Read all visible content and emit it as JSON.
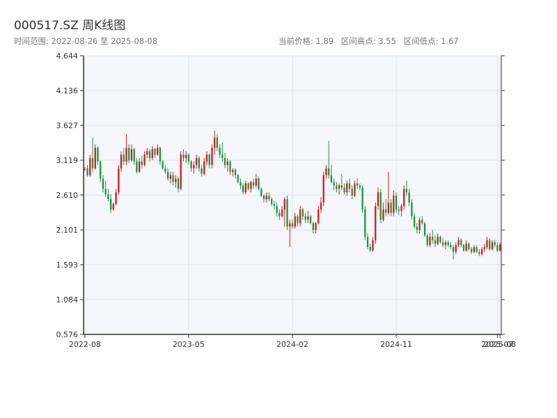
{
  "header": {
    "title": "000517.SZ 周K线图",
    "range_text": "时间范围: 2022-08-26 至 2025-08-08",
    "current_price": "当前价格: 1.89",
    "range_high": "区间高点: 3.55",
    "range_low": "区间低点: 1.67"
  },
  "colors": {
    "up": "#d7191c",
    "down": "#1a9641",
    "grid": "#e3e6ea",
    "plot_bg": "#f5f7fa",
    "axis": "#333333"
  },
  "chart_data": {
    "type": "candlestick",
    "title": "000517.SZ 周K线图",
    "xlabel": "",
    "ylabel": "",
    "ylim": [
      0.576,
      4.644
    ],
    "y_ticks": [
      0.576,
      1.084,
      1.593,
      2.101,
      2.61,
      3.119,
      3.627,
      4.136,
      4.644
    ],
    "y_tick_labels": [
      "0.576",
      "1.084",
      "1.593",
      "2.101",
      "2.610",
      "3.119",
      "3.627",
      "4.136",
      "4.644"
    ],
    "x_tick_labels": [
      "2022-08",
      "2023-05",
      "2024-02",
      "2024-11",
      "2025-07",
      "2025-08"
    ],
    "x_tick_index": [
      0,
      40,
      80,
      120,
      159,
      160
    ],
    "grid": true,
    "candles": [
      [
        2.98,
        3.02,
        2.96,
        2.99
      ],
      [
        3.0,
        3.05,
        2.88,
        2.9
      ],
      [
        2.9,
        3.2,
        2.88,
        3.15
      ],
      [
        3.15,
        3.45,
        2.95,
        3.0
      ],
      [
        3.0,
        3.35,
        2.98,
        3.3
      ],
      [
        3.3,
        3.32,
        3.05,
        3.1
      ],
      [
        3.1,
        3.12,
        2.8,
        2.85
      ],
      [
        2.85,
        2.9,
        2.65,
        2.7
      ],
      [
        2.7,
        2.82,
        2.58,
        2.62
      ],
      [
        2.62,
        2.7,
        2.52,
        2.55
      ],
      [
        2.55,
        2.62,
        2.35,
        2.4
      ],
      [
        2.4,
        2.5,
        2.38,
        2.48
      ],
      [
        2.48,
        2.7,
        2.46,
        2.65
      ],
      [
        2.65,
        3.05,
        2.62,
        3.0
      ],
      [
        3.0,
        3.25,
        2.95,
        3.2
      ],
      [
        3.2,
        3.3,
        3.05,
        3.1
      ],
      [
        3.1,
        3.5,
        3.05,
        3.3
      ],
      [
        3.3,
        3.35,
        3.08,
        3.12
      ],
      [
        3.12,
        3.35,
        3.1,
        3.28
      ],
      [
        3.28,
        3.3,
        3.05,
        3.1
      ],
      [
        3.1,
        3.15,
        2.92,
        2.95
      ],
      [
        2.95,
        3.15,
        2.93,
        3.1
      ],
      [
        3.1,
        3.18,
        3.0,
        3.05
      ],
      [
        3.05,
        3.25,
        3.03,
        3.2
      ],
      [
        3.2,
        3.3,
        3.15,
        3.25
      ],
      [
        3.25,
        3.28,
        3.1,
        3.15
      ],
      [
        3.15,
        3.32,
        3.12,
        3.28
      ],
      [
        3.28,
        3.3,
        3.15,
        3.2
      ],
      [
        3.2,
        3.35,
        3.18,
        3.3
      ],
      [
        3.3,
        3.32,
        3.05,
        3.1
      ],
      [
        3.1,
        3.12,
        2.98,
        3.0
      ],
      [
        3.0,
        3.05,
        2.92,
        2.95
      ],
      [
        2.95,
        3.0,
        2.82,
        2.85
      ],
      [
        2.85,
        2.95,
        2.78,
        2.9
      ],
      [
        2.9,
        2.95,
        2.75,
        2.8
      ],
      [
        2.8,
        2.9,
        2.72,
        2.85
      ],
      [
        2.85,
        2.88,
        2.65,
        2.7
      ],
      [
        2.7,
        3.25,
        2.68,
        3.2
      ],
      [
        3.2,
        3.28,
        3.1,
        3.15
      ],
      [
        3.15,
        3.25,
        3.08,
        3.2
      ],
      [
        3.2,
        3.22,
        3.05,
        3.1
      ],
      [
        3.1,
        3.12,
        2.95,
        3.0
      ],
      [
        3.0,
        3.1,
        2.92,
        3.05
      ],
      [
        3.05,
        3.2,
        3.0,
        3.15
      ],
      [
        3.15,
        3.18,
        2.95,
        3.0
      ],
      [
        3.0,
        3.05,
        2.88,
        2.92
      ],
      [
        2.92,
        3.15,
        2.9,
        3.1
      ],
      [
        3.1,
        3.25,
        3.05,
        3.2
      ],
      [
        3.2,
        3.22,
        3.0,
        3.05
      ],
      [
        3.05,
        3.35,
        3.0,
        3.3
      ],
      [
        3.3,
        3.55,
        3.2,
        3.45
      ],
      [
        3.45,
        3.5,
        3.25,
        3.3
      ],
      [
        3.3,
        3.35,
        3.15,
        3.2
      ],
      [
        3.2,
        3.38,
        3.1,
        3.15
      ],
      [
        3.15,
        3.22,
        3.0,
        3.05
      ],
      [
        3.05,
        3.15,
        2.95,
        3.1
      ],
      [
        3.1,
        3.12,
        2.9,
        2.95
      ],
      [
        2.95,
        3.0,
        2.88,
        2.98
      ],
      [
        2.98,
        3.0,
        2.85,
        2.9
      ],
      [
        2.9,
        2.92,
        2.78,
        2.8
      ],
      [
        2.8,
        2.85,
        2.7,
        2.75
      ],
      [
        2.75,
        2.78,
        2.62,
        2.65
      ],
      [
        2.65,
        2.82,
        2.62,
        2.78
      ],
      [
        2.78,
        2.8,
        2.68,
        2.7
      ],
      [
        2.7,
        2.82,
        2.65,
        2.8
      ],
      [
        2.8,
        2.85,
        2.7,
        2.75
      ],
      [
        2.75,
        2.92,
        2.72,
        2.85
      ],
      [
        2.85,
        2.88,
        2.68,
        2.7
      ],
      [
        2.7,
        2.72,
        2.58,
        2.6
      ],
      [
        2.6,
        2.62,
        2.5,
        2.55
      ],
      [
        2.55,
        2.65,
        2.5,
        2.6
      ],
      [
        2.6,
        2.65,
        2.52,
        2.55
      ],
      [
        2.55,
        2.58,
        2.45,
        2.48
      ],
      [
        2.48,
        2.52,
        2.4,
        2.45
      ],
      [
        2.45,
        2.5,
        2.3,
        2.35
      ],
      [
        2.35,
        2.4,
        2.25,
        2.3
      ],
      [
        2.3,
        2.45,
        2.28,
        2.4
      ],
      [
        2.4,
        2.58,
        2.15,
        2.55
      ],
      [
        2.55,
        2.6,
        2.1,
        2.15
      ],
      [
        2.15,
        2.25,
        1.85,
        2.2
      ],
      [
        2.2,
        2.25,
        2.12,
        2.15
      ],
      [
        2.15,
        2.35,
        2.12,
        2.3
      ],
      [
        2.3,
        2.32,
        2.15,
        2.2
      ],
      [
        2.2,
        2.45,
        2.15,
        2.4
      ],
      [
        2.4,
        2.42,
        2.25,
        2.3
      ],
      [
        2.3,
        2.35,
        2.2,
        2.25
      ],
      [
        2.25,
        2.38,
        2.2,
        2.3
      ],
      [
        2.3,
        2.32,
        2.18,
        2.2
      ],
      [
        2.2,
        2.22,
        2.05,
        2.1
      ],
      [
        2.1,
        2.22,
        2.05,
        2.2
      ],
      [
        2.2,
        2.45,
        2.18,
        2.4
      ],
      [
        2.4,
        2.58,
        2.35,
        2.5
      ],
      [
        2.5,
        2.95,
        2.45,
        2.9
      ],
      [
        2.9,
        3.05,
        2.85,
        3.0
      ],
      [
        3.0,
        3.4,
        2.85,
        2.9
      ],
      [
        2.9,
        3.05,
        2.78,
        2.8
      ],
      [
        2.8,
        2.85,
        2.68,
        2.75
      ],
      [
        2.75,
        2.8,
        2.65,
        2.7
      ],
      [
        2.7,
        2.78,
        2.62,
        2.75
      ],
      [
        2.75,
        2.92,
        2.68,
        2.72
      ],
      [
        2.72,
        2.78,
        2.62,
        2.65
      ],
      [
        2.65,
        2.82,
        2.6,
        2.78
      ],
      [
        2.78,
        2.85,
        2.65,
        2.7
      ],
      [
        2.7,
        2.75,
        2.55,
        2.6
      ],
      [
        2.6,
        2.82,
        2.58,
        2.78
      ],
      [
        2.78,
        2.85,
        2.7,
        2.75
      ],
      [
        2.75,
        2.78,
        2.68,
        2.72
      ],
      [
        2.72,
        2.75,
        2.35,
        2.4
      ],
      [
        2.4,
        2.45,
        1.95,
        2.0
      ],
      [
        2.0,
        2.05,
        1.82,
        1.85
      ],
      [
        1.85,
        1.9,
        1.78,
        1.8
      ],
      [
        1.8,
        2.0,
        1.78,
        1.95
      ],
      [
        1.95,
        2.5,
        1.9,
        2.45
      ],
      [
        2.45,
        2.72,
        2.4,
        2.65
      ],
      [
        2.65,
        2.7,
        2.2,
        2.25
      ],
      [
        2.25,
        2.5,
        2.22,
        2.4
      ],
      [
        2.4,
        2.55,
        2.3,
        2.35
      ],
      [
        2.35,
        2.95,
        2.32,
        2.5
      ],
      [
        2.5,
        2.55,
        2.3,
        2.35
      ],
      [
        2.35,
        2.68,
        2.3,
        2.6
      ],
      [
        2.6,
        2.65,
        2.35,
        2.4
      ],
      [
        2.4,
        2.45,
        2.32,
        2.38
      ],
      [
        2.38,
        2.48,
        2.3,
        2.45
      ],
      [
        2.45,
        2.75,
        2.4,
        2.7
      ],
      [
        2.7,
        2.82,
        2.6,
        2.65
      ],
      [
        2.65,
        2.7,
        2.45,
        2.5
      ],
      [
        2.5,
        2.55,
        2.25,
        2.3
      ],
      [
        2.3,
        2.35,
        2.12,
        2.15
      ],
      [
        2.15,
        2.2,
        2.05,
        2.1
      ],
      [
        2.1,
        2.28,
        2.05,
        2.25
      ],
      [
        2.25,
        2.3,
        2.18,
        2.2
      ],
      [
        2.2,
        2.22,
        2.0,
        2.02
      ],
      [
        2.02,
        2.05,
        1.85,
        1.88
      ],
      [
        1.88,
        2.05,
        1.85,
        2.0
      ],
      [
        2.0,
        2.1,
        1.9,
        1.95
      ],
      [
        1.95,
        2.02,
        1.85,
        1.9
      ],
      [
        1.9,
        2.05,
        1.88,
        2.0
      ],
      [
        2.0,
        2.02,
        1.9,
        1.92
      ],
      [
        1.92,
        1.98,
        1.85,
        1.88
      ],
      [
        1.88,
        1.95,
        1.82,
        1.92
      ],
      [
        1.92,
        1.95,
        1.85,
        1.88
      ],
      [
        1.88,
        1.92,
        1.82,
        1.85
      ],
      [
        1.85,
        1.88,
        1.67,
        1.78
      ],
      [
        1.78,
        1.92,
        1.75,
        1.88
      ],
      [
        1.88,
        2.0,
        1.85,
        1.95
      ],
      [
        1.95,
        1.98,
        1.85,
        1.88
      ],
      [
        1.88,
        1.9,
        1.78,
        1.8
      ],
      [
        1.8,
        1.95,
        1.78,
        1.9
      ],
      [
        1.9,
        1.92,
        1.8,
        1.82
      ],
      [
        1.82,
        1.85,
        1.75,
        1.78
      ],
      [
        1.78,
        1.88,
        1.76,
        1.85
      ],
      [
        1.85,
        1.88,
        1.76,
        1.78
      ],
      [
        1.78,
        1.82,
        1.72,
        1.75
      ],
      [
        1.75,
        1.85,
        1.72,
        1.82
      ],
      [
        1.82,
        1.9,
        1.78,
        1.85
      ],
      [
        1.85,
        2.0,
        1.82,
        1.95
      ],
      [
        1.95,
        1.98,
        1.8,
        1.82
      ],
      [
        1.82,
        1.95,
        1.8,
        1.92
      ],
      [
        1.92,
        1.95,
        1.85,
        1.88
      ],
      [
        1.88,
        1.92,
        1.78,
        1.8
      ],
      [
        1.8,
        1.92,
        1.78,
        1.89
      ]
    ]
  }
}
